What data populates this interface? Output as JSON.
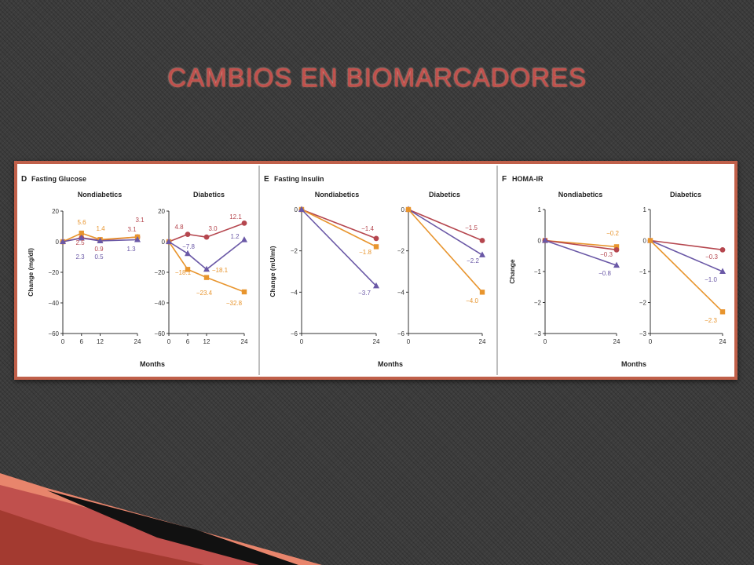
{
  "slide": {
    "title": "CAMBIOS EN BIOMARCADORES"
  },
  "colors": {
    "red": "#b5464e",
    "orange": "#e8952e",
    "purple": "#6a58a6",
    "frame": "#c0604a",
    "title": "#c0504d"
  },
  "chart_data": [
    {
      "type": "line",
      "letter": "D",
      "name": "Fasting Glucose",
      "ylabel": "Change (mg/dl)",
      "xlabel": "Months",
      "ylim": [
        -60,
        20
      ],
      "yticks": [
        "20",
        "0",
        "−20",
        "−40",
        "−60"
      ],
      "panels": [
        {
          "title": "Nondiabetics",
          "x": [
            0,
            6,
            12,
            24
          ],
          "xticks": [
            "0",
            "6",
            "12",
            "24"
          ],
          "series": [
            {
              "color": "red",
              "marker": "circle",
              "values": [
                0,
                2.5,
                0.9,
                3.1
              ]
            },
            {
              "color": "orange",
              "marker": "square",
              "values": [
                0,
                5.6,
                1.4,
                3.1
              ]
            },
            {
              "color": "purple",
              "marker": "triangle",
              "values": [
                0,
                2.3,
                0.5,
                1.3
              ]
            }
          ],
          "labels": [
            "5.6",
            "1.4",
            "3.1",
            "3.1",
            "2.5",
            "0.9",
            "2.3",
            "0.5",
            "1.3"
          ]
        },
        {
          "title": "Diabetics",
          "x": [
            0,
            6,
            12,
            24
          ],
          "xticks": [
            "0",
            "6",
            "12",
            "24"
          ],
          "series": [
            {
              "color": "red",
              "marker": "circle",
              "values": [
                0,
                4.8,
                3.0,
                12.1
              ]
            },
            {
              "color": "orange",
              "marker": "square",
              "values": [
                0,
                -18.1,
                -23.4,
                -32.8
              ]
            },
            {
              "color": "purple",
              "marker": "triangle",
              "values": [
                0,
                -7.8,
                -18.1,
                1.2
              ]
            }
          ],
          "labels": [
            "4.8",
            "3.0",
            "12.1",
            "1.2",
            "−7.8",
            "−18.1",
            "−18.1",
            "−23.4",
            "−32.8"
          ]
        }
      ]
    },
    {
      "type": "line",
      "letter": "E",
      "name": "Fasting Insulin",
      "ylabel": "Change (mU/ml)",
      "xlabel": "Months",
      "ylim": [
        -6,
        0
      ],
      "yticks": [
        "0",
        "−2",
        "−4",
        "−6"
      ],
      "panels": [
        {
          "title": "Nondiabetics",
          "x": [
            0,
            24
          ],
          "xticks": [
            "0",
            "24"
          ],
          "series": [
            {
              "color": "red",
              "marker": "circle",
              "values": [
                0,
                -1.4
              ]
            },
            {
              "color": "orange",
              "marker": "square",
              "values": [
                0,
                -1.8
              ]
            },
            {
              "color": "purple",
              "marker": "triangle",
              "values": [
                0,
                -3.7
              ]
            }
          ],
          "labels": [
            "−1.4",
            "−1.8",
            "−3.7"
          ]
        },
        {
          "title": "Diabetics",
          "x": [
            0,
            24
          ],
          "xticks": [
            "0",
            "24"
          ],
          "series": [
            {
              "color": "red",
              "marker": "circle",
              "values": [
                0,
                -1.5
              ]
            },
            {
              "color": "purple",
              "marker": "triangle",
              "values": [
                0,
                -2.2
              ]
            },
            {
              "color": "orange",
              "marker": "square",
              "values": [
                0,
                -4.0
              ]
            }
          ],
          "labels": [
            "−1.5",
            "−2.2",
            "−4.0"
          ]
        }
      ]
    },
    {
      "type": "line",
      "letter": "F",
      "name": "HOMA-IR",
      "ylabel": "Change",
      "xlabel": "Months",
      "ylim": [
        -3,
        1
      ],
      "yticks": [
        "1",
        "0",
        "−1",
        "−2",
        "−3"
      ],
      "panels": [
        {
          "title": "Nondiabetics",
          "x": [
            0,
            24
          ],
          "xticks": [
            "0",
            "24"
          ],
          "series": [
            {
              "color": "orange",
              "marker": "square",
              "values": [
                0,
                -0.2
              ]
            },
            {
              "color": "red",
              "marker": "circle",
              "values": [
                0,
                -0.3
              ]
            },
            {
              "color": "purple",
              "marker": "triangle",
              "values": [
                0,
                -0.8
              ]
            }
          ],
          "labels": [
            "−0.2",
            "−0.3",
            "−0.8"
          ]
        },
        {
          "title": "Diabetics",
          "x": [
            0,
            24
          ],
          "xticks": [
            "0",
            "24"
          ],
          "series": [
            {
              "color": "red",
              "marker": "circle",
              "values": [
                0,
                -0.3
              ]
            },
            {
              "color": "purple",
              "marker": "triangle",
              "values": [
                0,
                -1.0
              ]
            },
            {
              "color": "orange",
              "marker": "square",
              "values": [
                0,
                -2.3
              ]
            }
          ],
          "labels": [
            "−0.3",
            "−1.0",
            "−2.3"
          ]
        }
      ]
    }
  ]
}
